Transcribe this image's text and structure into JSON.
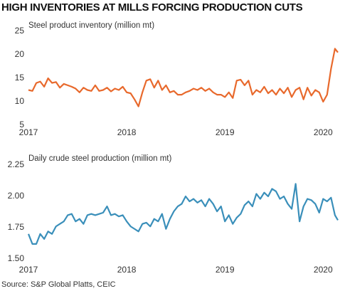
{
  "title": "HIGH INVENTORIES AT MILLS FORCING PRODUCTION CUTS",
  "source": "Source: S&P Global Platts, CEIC",
  "chart_data": [
    {
      "type": "line",
      "title": "Steel product inventory (million mt)",
      "color": "#e8692c",
      "x": [
        2017,
        2017.04,
        2017.08,
        2017.12,
        2017.16,
        2017.2,
        2017.24,
        2017.28,
        2017.32,
        2017.36,
        2017.4,
        2017.44,
        2017.48,
        2017.52,
        2017.56,
        2017.6,
        2017.64,
        2017.68,
        2017.72,
        2017.76,
        2017.8,
        2017.84,
        2017.88,
        2017.92,
        2017.96,
        2018,
        2018.04,
        2018.08,
        2018.12,
        2018.16,
        2018.2,
        2018.24,
        2018.28,
        2018.32,
        2018.36,
        2018.4,
        2018.44,
        2018.48,
        2018.52,
        2018.56,
        2018.6,
        2018.64,
        2018.68,
        2018.72,
        2018.76,
        2018.8,
        2018.84,
        2018.88,
        2018.92,
        2018.96,
        2019,
        2019.04,
        2019.08,
        2019.12,
        2019.16,
        2019.2,
        2019.24,
        2019.28,
        2019.32,
        2019.36,
        2019.4,
        2019.44,
        2019.48,
        2019.52,
        2019.56,
        2019.6,
        2019.64,
        2019.68,
        2019.72,
        2019.76,
        2019.8,
        2019.84,
        2019.88,
        2019.92,
        2019.96,
        2020,
        2020.04,
        2020.08,
        2020.12,
        2020.15
      ],
      "values": [
        12.5,
        12.3,
        14,
        14.3,
        13.2,
        15,
        14,
        14.2,
        13,
        13.8,
        13.5,
        13.2,
        12.8,
        12,
        13,
        12.5,
        12.3,
        13.5,
        12.3,
        12.5,
        13,
        12.2,
        12.8,
        12.5,
        13.2,
        12,
        11.8,
        10.5,
        9,
        12,
        14.5,
        14.8,
        13,
        14.5,
        12.5,
        13.5,
        12,
        12.3,
        11.5,
        11.5,
        12,
        12.3,
        12.8,
        12.5,
        13,
        12.3,
        12.8,
        12,
        11.5,
        11.5,
        11,
        12,
        10.8,
        14.5,
        14.7,
        13.5,
        14.5,
        11.5,
        12.5,
        12,
        13.2,
        11.8,
        12.5,
        11.5,
        12.8,
        11.8,
        13,
        11,
        12.5,
        13,
        10.5,
        13,
        11.3,
        12.5,
        12,
        10,
        11.5,
        17,
        21.3,
        20.5
      ],
      "xlim": [
        2017,
        2020.15
      ],
      "xticks": [
        2017,
        2018,
        2019,
        2020
      ],
      "ylim": [
        5,
        25
      ],
      "yticks": [
        5,
        10,
        15,
        20,
        25
      ]
    },
    {
      "type": "line",
      "title": "Daily crude steel production (million mt)",
      "color": "#3a8fba",
      "x": [
        2017,
        2017.04,
        2017.08,
        2017.12,
        2017.16,
        2017.2,
        2017.24,
        2017.28,
        2017.32,
        2017.36,
        2017.4,
        2017.44,
        2017.48,
        2017.52,
        2017.56,
        2017.6,
        2017.64,
        2017.68,
        2017.72,
        2017.76,
        2017.8,
        2017.84,
        2017.88,
        2017.92,
        2017.96,
        2018,
        2018.04,
        2018.08,
        2018.12,
        2018.16,
        2018.2,
        2018.24,
        2018.28,
        2018.32,
        2018.36,
        2018.4,
        2018.44,
        2018.48,
        2018.52,
        2018.56,
        2018.6,
        2018.64,
        2018.68,
        2018.72,
        2018.76,
        2018.8,
        2018.84,
        2018.88,
        2018.92,
        2018.96,
        2019,
        2019.04,
        2019.08,
        2019.12,
        2019.16,
        2019.2,
        2019.24,
        2019.28,
        2019.32,
        2019.36,
        2019.4,
        2019.44,
        2019.48,
        2019.52,
        2019.56,
        2019.6,
        2019.64,
        2019.68,
        2019.72,
        2019.76,
        2019.8,
        2019.84,
        2019.88,
        2019.92,
        2019.96,
        2020,
        2020.04,
        2020.08,
        2020.12,
        2020.15
      ],
      "values": [
        1.7,
        1.62,
        1.62,
        1.7,
        1.66,
        1.72,
        1.7,
        1.76,
        1.78,
        1.8,
        1.85,
        1.86,
        1.8,
        1.82,
        1.78,
        1.85,
        1.86,
        1.85,
        1.86,
        1.87,
        1.92,
        1.85,
        1.86,
        1.84,
        1.85,
        1.8,
        1.76,
        1.74,
        1.72,
        1.78,
        1.79,
        1.76,
        1.82,
        1.8,
        1.86,
        1.74,
        1.82,
        1.88,
        1.92,
        1.94,
        2,
        1.96,
        1.98,
        1.95,
        1.97,
        1.92,
        1.98,
        1.94,
        1.88,
        1.92,
        1.8,
        1.85,
        1.78,
        1.83,
        1.86,
        1.93,
        1.96,
        1.92,
        2.02,
        1.98,
        2.03,
        2,
        2.06,
        2.04,
        1.98,
        2,
        1.94,
        1.9,
        2.1,
        1.8,
        1.92,
        1.98,
        1.97,
        1.94,
        1.87,
        1.98,
        1.96,
        1.99,
        1.85,
        1.81
      ],
      "xlim": [
        2017,
        2020.15
      ],
      "xticks": [
        2017,
        2018,
        2019,
        2020
      ],
      "ylim": [
        1.5,
        2.25
      ],
      "yticks": [
        {
          "value": 1.5,
          "label": "1.50"
        },
        1.75,
        {
          "value": 2,
          "label": "2.00"
        },
        2.25
      ]
    }
  ]
}
